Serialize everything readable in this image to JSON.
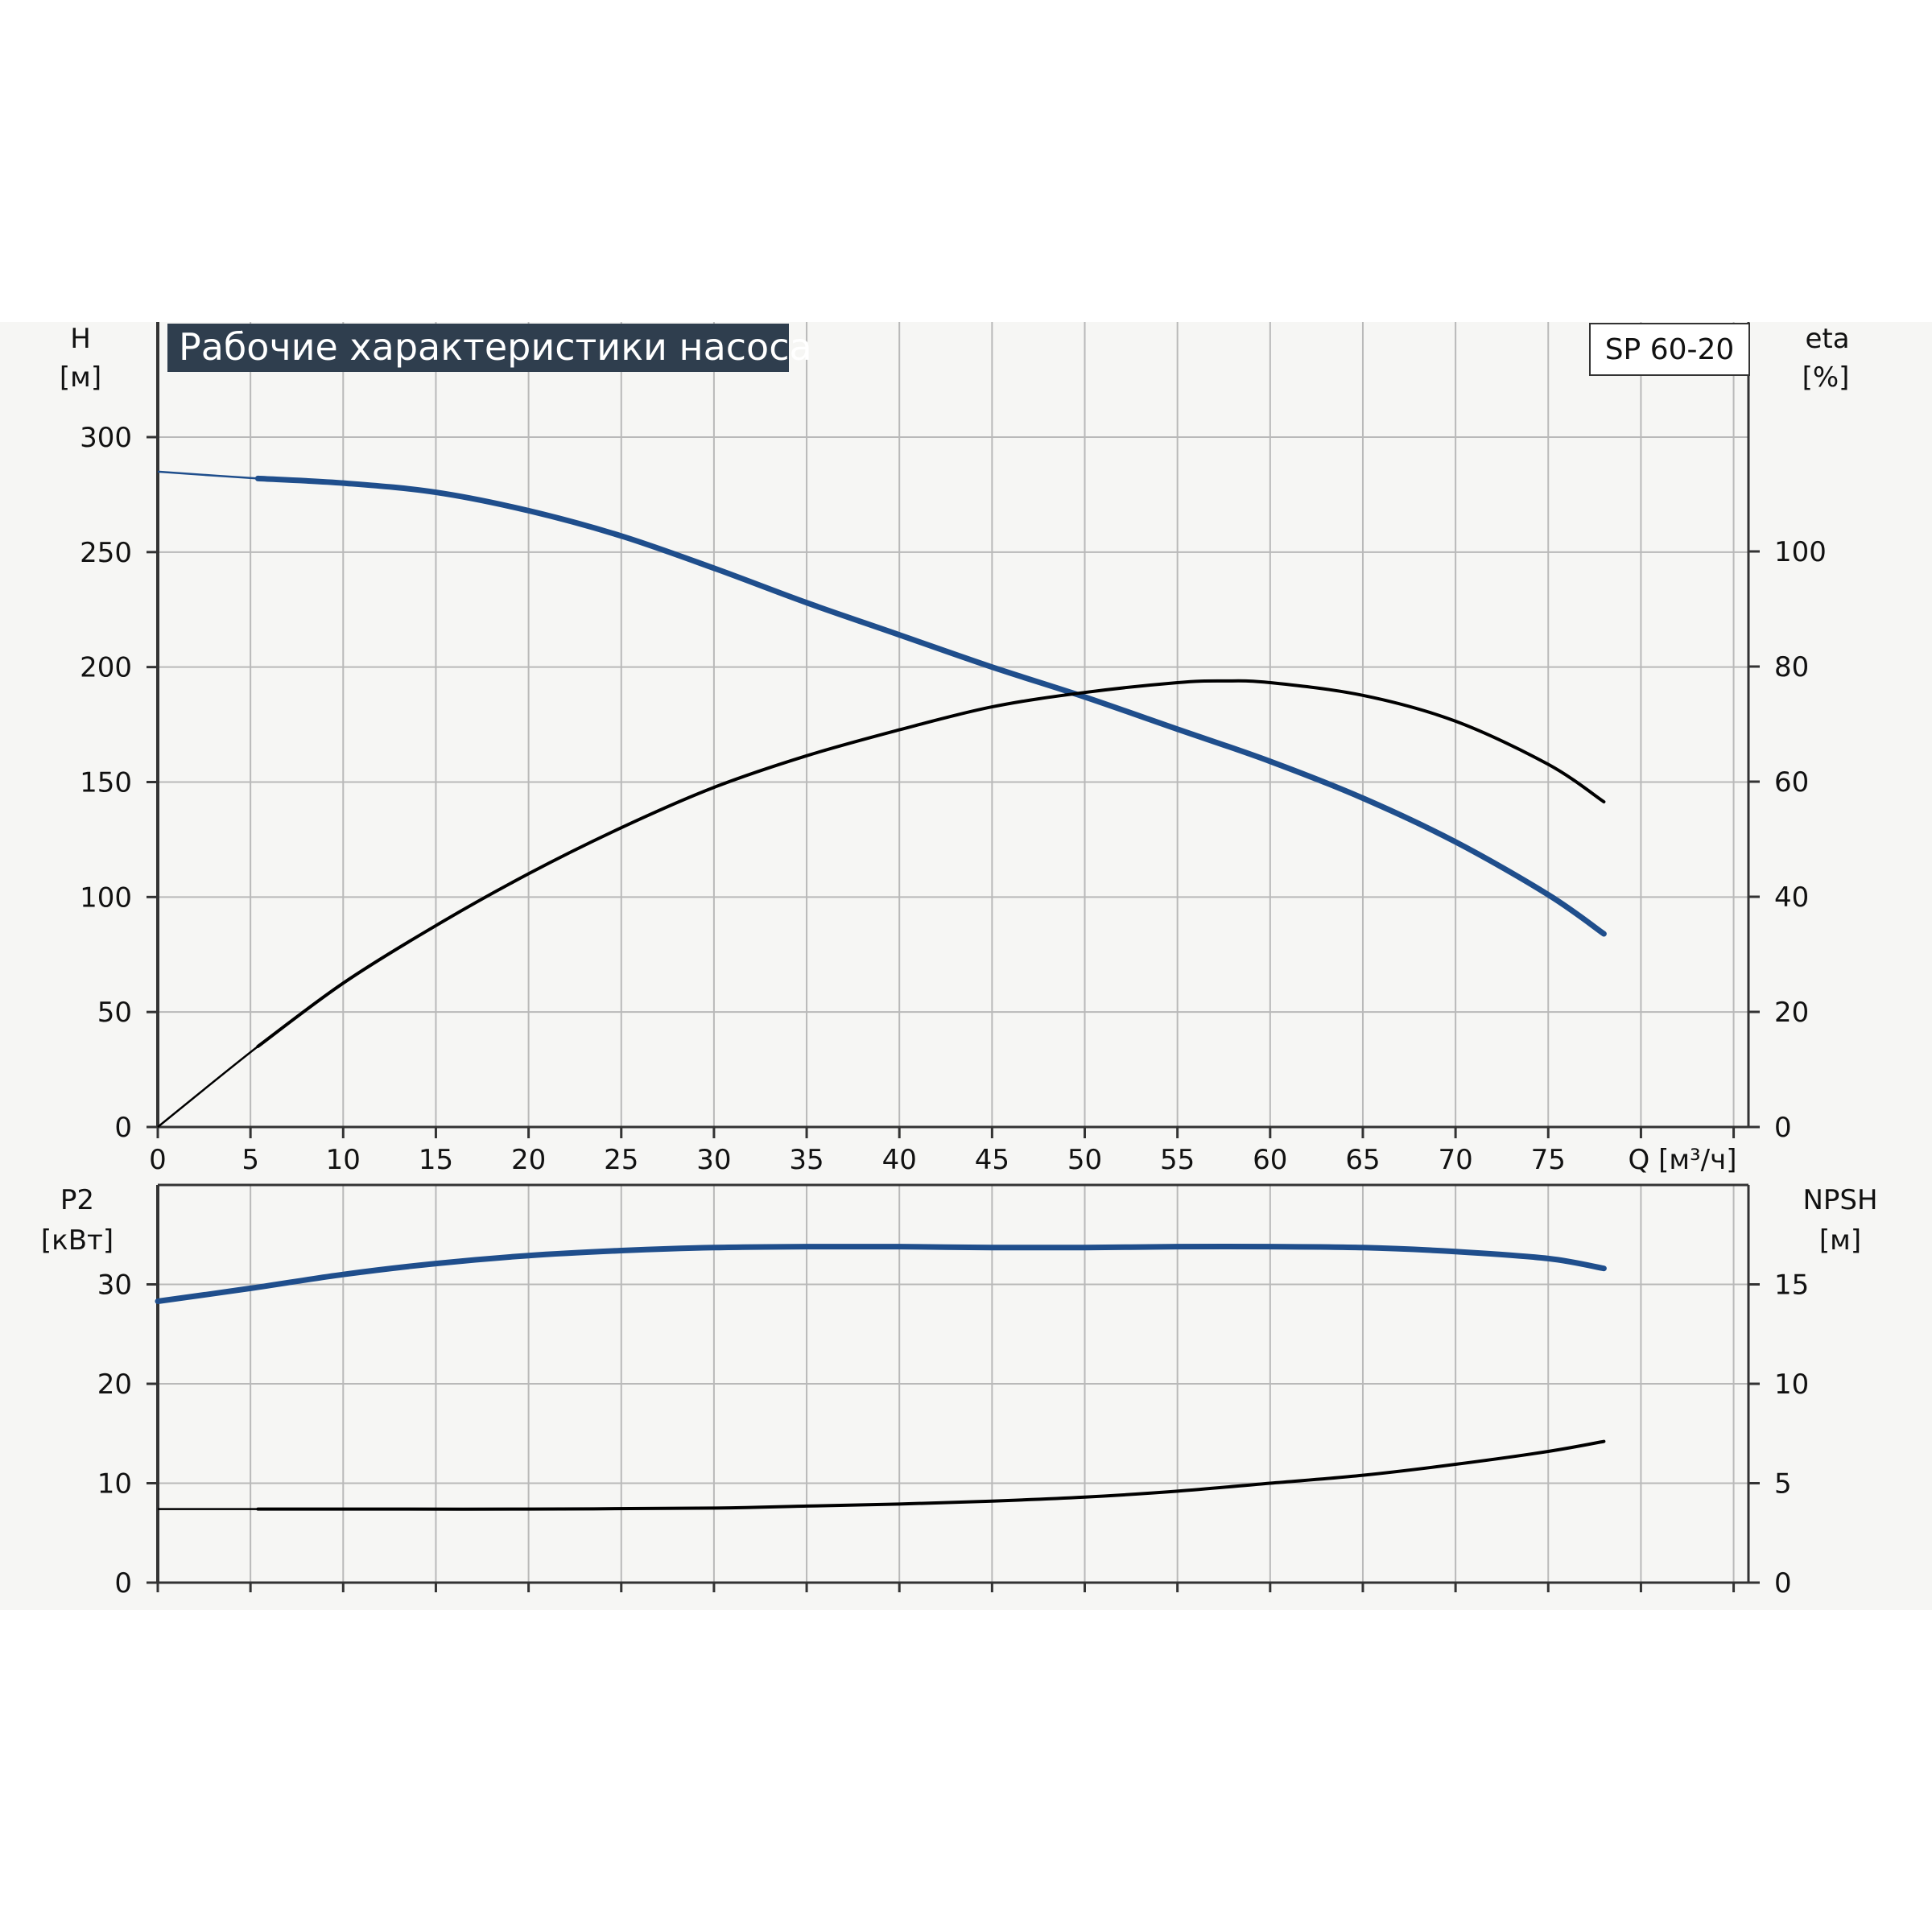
{
  "title": "Рабочие характеристики насоса",
  "model": "SP 60-20",
  "colors": {
    "title_bg": "#2f3e4e",
    "grid": "#b9b9b9",
    "axis": "#333333",
    "blue_curve": "#1f4e8c",
    "black_curve": "#000000",
    "strip": "#f6f6f4"
  },
  "chart_data": [
    {
      "type": "line",
      "panel": "top",
      "x_label": "Q [м³/ч]",
      "x_ticks": [
        "0",
        "5",
        "10",
        "15",
        "20",
        "25",
        "30",
        "35",
        "40",
        "45",
        "50",
        "55",
        "60",
        "65",
        "70",
        "75"
      ],
      "xlim": [
        0,
        85.8
      ],
      "y_left": {
        "label_line1": "H",
        "label_line2": "[м]",
        "ticks": [
          "0",
          "50",
          "100",
          "150",
          "200",
          "250",
          "300"
        ],
        "ylim": [
          0,
          300
        ]
      },
      "y_right": {
        "label_line1": "eta",
        "label_line2": "[%]",
        "ticks": [
          "0",
          "20",
          "40",
          "60",
          "80",
          "100"
        ],
        "ylim": [
          0,
          120
        ]
      },
      "grid": true,
      "series": [
        {
          "axis": "left",
          "color": "blue",
          "x": [
            0,
            5.4,
            10,
            15,
            20,
            25,
            30,
            35,
            40,
            45,
            50,
            55,
            60,
            65,
            70,
            75,
            78
          ],
          "values": [
            285,
            282,
            280,
            276,
            268,
            257,
            243,
            228,
            214,
            200,
            187,
            173,
            159,
            143,
            124,
            101,
            84
          ]
        },
        {
          "axis": "right",
          "color": "black",
          "x": [
            0,
            5.4,
            10,
            15,
            20,
            25,
            30,
            35,
            40,
            45,
            50,
            55,
            57.5,
            60,
            65,
            70,
            75,
            78
          ],
          "values": [
            0,
            14,
            25,
            35,
            44,
            52,
            59,
            64.5,
            69,
            73,
            75.5,
            77.2,
            77.5,
            77.2,
            75,
            70.5,
            63,
            56.5
          ]
        }
      ]
    },
    {
      "type": "line",
      "panel": "bottom",
      "xlim": [
        0,
        85.8
      ],
      "y_left": {
        "label_line1": "P2",
        "label_line2": "[кВт]",
        "ticks": [
          "0",
          "10",
          "20",
          "30"
        ],
        "ylim": [
          0,
          40
        ]
      },
      "y_right": {
        "label_line1": "NPSH",
        "label_line2": "[м]",
        "ticks": [
          "0",
          "5",
          "10",
          "15"
        ],
        "ylim": [
          0,
          20
        ]
      },
      "grid": true,
      "series": [
        {
          "axis": "left",
          "color": "blue",
          "x": [
            0,
            5,
            10,
            15,
            20,
            25,
            30,
            35,
            40,
            45,
            50,
            55,
            60,
            65,
            70,
            75,
            78
          ],
          "values": [
            28.3,
            29.6,
            31,
            32.1,
            32.9,
            33.4,
            33.7,
            33.8,
            33.8,
            33.7,
            33.7,
            33.8,
            33.8,
            33.7,
            33.3,
            32.6,
            31.6
          ]
        },
        {
          "axis": "right",
          "color": "black",
          "x": [
            0,
            5.4,
            10,
            20,
            30,
            35,
            40,
            45,
            50,
            55,
            60,
            65,
            70,
            75,
            78
          ],
          "values": [
            3.7,
            3.7,
            3.7,
            3.7,
            3.75,
            3.85,
            3.95,
            4.1,
            4.3,
            4.6,
            5.0,
            5.4,
            5.95,
            6.6,
            7.1
          ]
        }
      ]
    }
  ]
}
